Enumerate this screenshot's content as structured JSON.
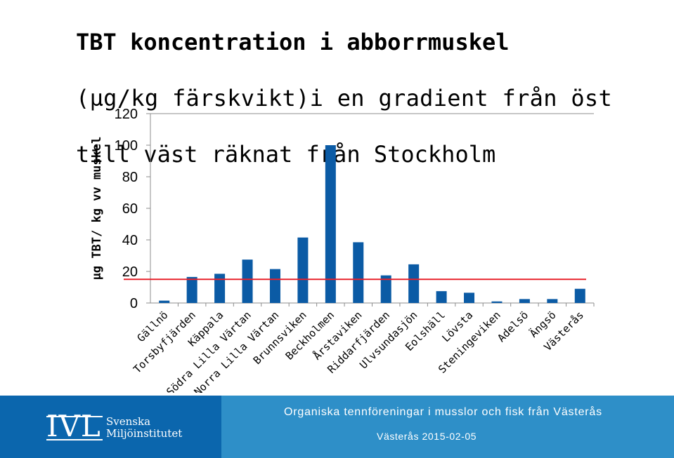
{
  "title": {
    "line1": "TBT koncentration i abborrmuskel",
    "line2": "(µg/kg färskvikt)i en gradient från öst",
    "line3": "till väst räknat från Stockholm"
  },
  "chart_data": {
    "type": "bar",
    "ylabel": "µg TBT/ kg vv muskel",
    "ylim": [
      0,
      120
    ],
    "yticks": [
      0,
      20,
      40,
      60,
      80,
      100,
      120
    ],
    "categories": [
      "Gällnö",
      "Torsbyfjärden",
      "Käppala",
      "Södra Lilla Värtan",
      "Norra Lilla Värtan",
      "Brunnsviken",
      "Beckholmen",
      "Årstaviken",
      "Riddarfjärden",
      "Ulvsundasjön",
      "Eolshäll",
      "Lövsta",
      "Steningeviken",
      "Adelsö",
      "Ängsö",
      "Västerås"
    ],
    "values": [
      1.5,
      16.5,
      18.5,
      27.5,
      21.5,
      41.5,
      100,
      38.5,
      17.5,
      24.5,
      7.5,
      6.5,
      1,
      2.5,
      2.5,
      9
    ],
    "reference_line": 15,
    "grid": false,
    "bar_color": "#0b5ba5",
    "reference_color": "#e8202a"
  },
  "footer": {
    "logo_text": "IVL",
    "org_line1": "Svenska",
    "org_line2": "Miljöinstitutet",
    "presentation_title": "Organiska tennföreningar i musslor och fisk från Västerås",
    "place_date": "Västerås 2015-02-05"
  }
}
